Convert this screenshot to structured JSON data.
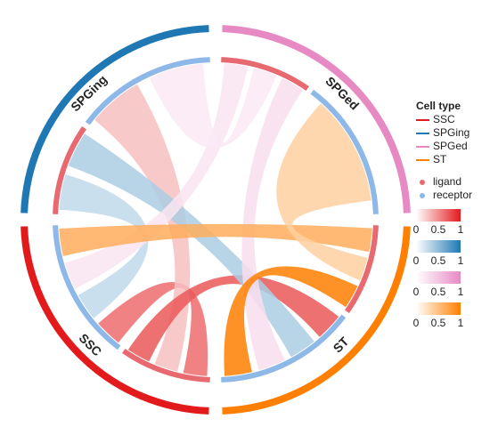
{
  "chart_data": {
    "type": "chord",
    "cell_types": [
      {
        "name": "SSC",
        "color": "#e31a1c"
      },
      {
        "name": "SPGing",
        "color": "#1f78b4"
      },
      {
        "name": "SPGed",
        "color": "#e78ac3"
      },
      {
        "name": "ST",
        "color": "#ff7f00"
      }
    ],
    "matrix": [
      [
        0.6,
        0.2,
        null,
        0.7
      ],
      [
        0.2,
        null,
        null,
        0.3
      ],
      [
        0.15,
        0.1,
        null,
        0.2
      ],
      [
        0.6,
        null,
        0.3,
        1.0
      ]
    ],
    "legend_title": "Cell type",
    "roles": [
      {
        "name": "ligand",
        "color": "#e8696f"
      },
      {
        "name": "receptor",
        "color": "#8db8e8"
      }
    ],
    "colorbar_ticks": [
      0,
      0.5,
      1
    ]
  }
}
